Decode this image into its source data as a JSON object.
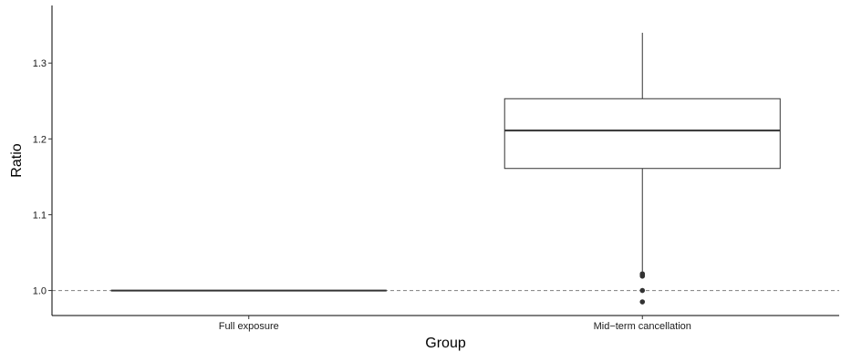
{
  "chart_data": {
    "type": "boxplot",
    "xlabel": "Group",
    "ylabel": "Ratio",
    "categories": [
      "Full exposure",
      "Mid−term cancellation"
    ],
    "y_ticks": [
      {
        "value": 1.0,
        "label": "1.0"
      },
      {
        "value": 1.1,
        "label": "1.1"
      },
      {
        "value": 1.2,
        "label": "1.2"
      },
      {
        "value": 1.3,
        "label": "1.3"
      }
    ],
    "ylim": [
      0.967,
      1.376
    ],
    "reference_line": {
      "y": 1.0,
      "style": "dashed"
    },
    "boxes": [
      {
        "category": "Full exposure",
        "min": 1.0,
        "q1": 1.0,
        "median": 1.0,
        "q3": 1.0,
        "max": 1.0,
        "outliers": []
      },
      {
        "category": "Mid−term cancellation",
        "min": 1.025,
        "q1": 1.161,
        "median": 1.211,
        "q3": 1.253,
        "max": 1.34,
        "outliers": [
          1.019,
          1.021,
          1.022,
          1.0,
          0.985
        ]
      }
    ],
    "grid": false,
    "legend": "none"
  }
}
